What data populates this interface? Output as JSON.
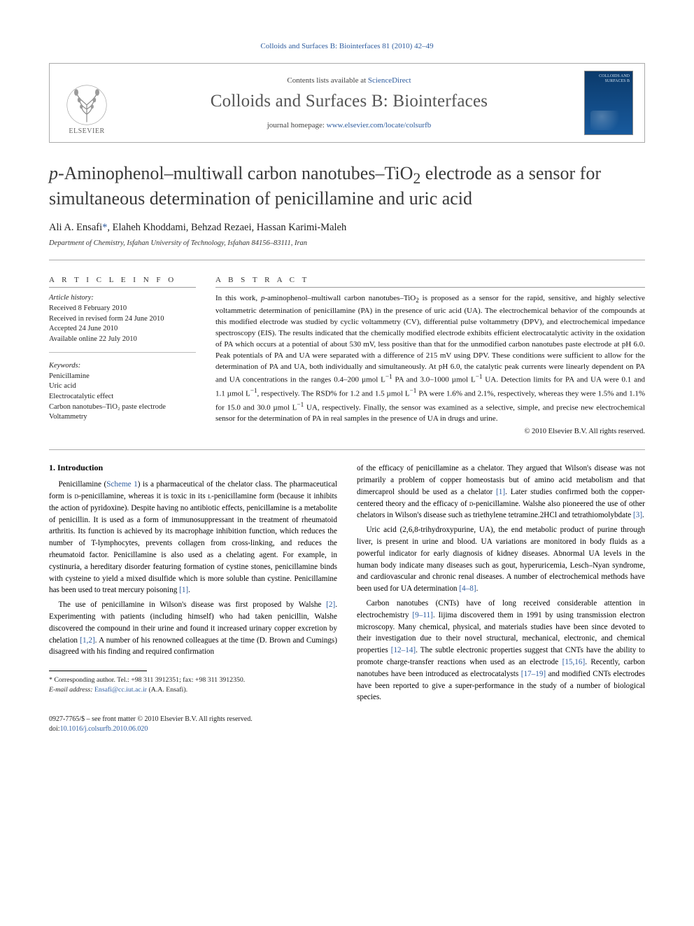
{
  "running_head": "Colloids and Surfaces B: Biointerfaces 81 (2010) 42–49",
  "masthead": {
    "contents_prefix": "Contents lists available at ",
    "contents_link": "ScienceDirect",
    "journal_name": "Colloids and Surfaces B: Biointerfaces",
    "homepage_prefix": "journal homepage: ",
    "homepage_url": "www.elsevier.com/locate/colsurfb",
    "publisher_word": "ELSEVIER",
    "cover_label": "COLLOIDS AND SURFACES B"
  },
  "title_html": "<span class='italic'>p</span>-Aminophenol–multiwall carbon nanotubes–TiO<sub>2</sub> electrode as a sensor for simultaneous determination of penicillamine and uric acid",
  "authors_html": "Ali A. Ensafi<span class='corr'>*</span>, Elaheh Khoddami, Behzad Rezaei, Hassan Karimi-Maleh",
  "affiliation": "Department of Chemistry, Isfahan University of Technology, Isfahan 84156–83111, Iran",
  "panes": {
    "info_heading": "A R T I C L E   I N F O",
    "abstract_heading": "A B S T R A C T",
    "history_label": "Article history:",
    "history": [
      "Received 8 February 2010",
      "Received in revised form 24 June 2010",
      "Accepted 24 June 2010",
      "Available online 22 July 2010"
    ],
    "keywords_label": "Keywords:",
    "keywords": [
      "Penicillamine",
      "Uric acid",
      "Electrocatalytic effect",
      "Carbon nanotubes–TiO₂ paste electrode",
      "Voltammetry"
    ],
    "abstract_html": "In this work, <i>p</i>-aminophenol–multiwall carbon nanotubes–TiO<sub>2</sub> is proposed as a sensor for the rapid, sensitive, and highly selective voltammetric determination of penicillamine (PA) in the presence of uric acid (UA). The electrochemical behavior of the compounds at this modified electrode was studied by cyclic voltammetry (CV), differential pulse voltammetry (DPV), and electrochemical impedance spectroscopy (EIS). The results indicated that the chemically modified electrode exhibits efficient electrocatalytic activity in the oxidation of PA which occurs at a potential of about 530 mV, less positive than that for the unmodified carbon nanotubes paste electrode at pH 6.0. Peak potentials of PA and UA were separated with a difference of 215 mV using DPV. These conditions were sufficient to allow for the determination of PA and UA, both individually and simultaneously. At pH 6.0, the catalytic peak currents were linearly dependent on PA and UA concentrations in the ranges 0.4–200 µmol L<sup>−1</sup> PA and 3.0–1000 µmol L<sup>−1</sup> UA. Detection limits for PA and UA were 0.1 and 1.1 µmol L<sup>−1</sup>, respectively. The RSD% for 1.2 and 1.5 µmol L<sup>−1</sup> PA were 1.6% and 2.1%, respectively, whereas they were 1.5% and 1.1% for 15.0 and 30.0 µmol L<sup>−1</sup> UA, respectively. Finally, the sensor was examined as a selective, simple, and precise new electrochemical sensor for the determination of PA in real samples in the presence of UA in drugs and urine.",
    "copyright": "© 2010 Elsevier B.V. All rights reserved."
  },
  "body": {
    "heading": "1.  Introduction",
    "p1": "Penicillamine (<span class='cite'>Scheme 1</span>) is a pharmaceutical of the chelator class. The pharmaceutical form is <span style='font-variant:small-caps'>d</span>-penicillamine, whereas it is toxic in its <span style='font-variant:small-caps'>l</span>-penicillamine form (because it inhibits the action of pyridoxine). Despite having no antibiotic effects, penicillamine is a metabolite of penicillin. It is used as a form of immunosuppressant in the treatment of rheumatoid arthritis. Its function is achieved by its macrophage inhibition function, which reduces the number of T-lymphocytes, prevents collagen from cross-linking, and reduces the rheumatoid factor. Penicillamine is also used as a chelating agent. For example, in cystinuria, a hereditary disorder featuring formation of cystine stones, penicillamine binds with cysteine to yield a mixed disulfide which is more soluble than cystine. Penicillamine has been used to treat mercury poisoning <span class='cite'>[1]</span>.",
    "p2": "The use of penicillamine in Wilson's disease was first proposed by Walshe <span class='cite'>[2]</span>. Experimenting with patients (including himself) who had taken penicillin, Walshe discovered the compound in their urine and found it increased urinary copper excretion by chelation <span class='cite'>[1,2]</span>. A number of his renowned colleagues at the time (D. Brown and Cumings) disagreed with his finding and required confirmation",
    "p3": "of the efficacy of penicillamine as a chelator. They argued that Wilson's disease was not primarily a problem of copper homeostasis but of amino acid metabolism and that dimercaprol should be used as a chelator <span class='cite'>[1]</span>. Later studies confirmed both the copper-centered theory and the efficacy of <span style='font-variant:small-caps'>d</span>-penicillamine. Walshe also pioneered the use of other chelators in Wilson's disease such as triethylene tetramine.2HCl and tetrathiomolybdate <span class='cite'>[3]</span>.",
    "p4": "Uric acid (2,6,8-trihydroxypurine, UA), the end metabolic product of purine through liver, is present in urine and blood. UA variations are monitored in body fluids as a powerful indicator for early diagnosis of kidney diseases. Abnormal UA levels in the human body indicate many diseases such as gout, hyperuricemia, Lesch–Nyan syndrome, and cardiovascular and chronic renal diseases. A number of electrochemical methods have been used for UA determination <span class='cite'>[4–8]</span>.",
    "p5": "Carbon nanotubes (CNTs) have of long received considerable attention in electrochemistry <span class='cite'>[9–11]</span>. Iijima discovered them in 1991 by using transmission electron microscopy. Many chemical, physical, and materials studies have been since devoted to their investigation due to their novel structural, mechanical, electronic, and chemical properties <span class='cite'>[12–14]</span>. The subtle electronic properties suggest that CNTs have the ability to promote charge-transfer reactions when used as an electrode <span class='cite'>[15,16]</span>. Recently, carbon nanotubes have been introduced as electrocatalysts <span class='cite'>[17–19]</span> and modified CNTs electrodes have been reported to give a super-performance in the study of a number of biological species."
  },
  "footnote": {
    "corr_label": "* Corresponding author. Tel.: +98 311 3912351; fax: +98 311 3912350.",
    "email_label": "E-mail address:",
    "email": "Ensafi@cc.iut.ac.ir",
    "email_suffix": "(A.A. Ensafi)."
  },
  "bottom": {
    "line1": "0927-7765/$ – see front matter © 2010 Elsevier B.V. All rights reserved.",
    "doi_prefix": "doi:",
    "doi": "10.1016/j.colsurfb.2010.06.020"
  },
  "colors": {
    "link": "#2e5c9e",
    "rule": "#aaaaaa",
    "text": "#000000",
    "muted": "#555555"
  }
}
